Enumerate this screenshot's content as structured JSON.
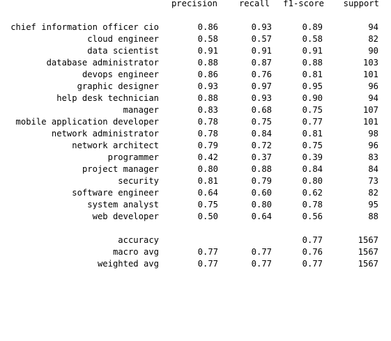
{
  "header": {
    "precision": "precision",
    "recall": "recall",
    "f1": "f1-score",
    "support": "support"
  },
  "rows": [
    {
      "label": "chief information officer cio",
      "precision": "0.86",
      "recall": "0.93",
      "f1": "0.89",
      "support": "94"
    },
    {
      "label": "cloud engineer",
      "precision": "0.58",
      "recall": "0.57",
      "f1": "0.58",
      "support": "82"
    },
    {
      "label": "data scientist",
      "precision": "0.91",
      "recall": "0.91",
      "f1": "0.91",
      "support": "90"
    },
    {
      "label": "database administrator",
      "precision": "0.88",
      "recall": "0.87",
      "f1": "0.88",
      "support": "103"
    },
    {
      "label": "devops engineer",
      "precision": "0.86",
      "recall": "0.76",
      "f1": "0.81",
      "support": "101"
    },
    {
      "label": "graphic designer",
      "precision": "0.93",
      "recall": "0.97",
      "f1": "0.95",
      "support": "96"
    },
    {
      "label": "help desk technician",
      "precision": "0.88",
      "recall": "0.93",
      "f1": "0.90",
      "support": "94"
    },
    {
      "label": "manager",
      "precision": "0.83",
      "recall": "0.68",
      "f1": "0.75",
      "support": "107"
    },
    {
      "label": "mobile application developer",
      "precision": "0.78",
      "recall": "0.75",
      "f1": "0.77",
      "support": "101"
    },
    {
      "label": "network administrator",
      "precision": "0.78",
      "recall": "0.84",
      "f1": "0.81",
      "support": "98"
    },
    {
      "label": "network architect",
      "precision": "0.79",
      "recall": "0.72",
      "f1": "0.75",
      "support": "96"
    },
    {
      "label": "programmer",
      "precision": "0.42",
      "recall": "0.37",
      "f1": "0.39",
      "support": "83"
    },
    {
      "label": "project manager",
      "precision": "0.80",
      "recall": "0.88",
      "f1": "0.84",
      "support": "84"
    },
    {
      "label": "security",
      "precision": "0.81",
      "recall": "0.79",
      "f1": "0.80",
      "support": "73"
    },
    {
      "label": "software engineer",
      "precision": "0.64",
      "recall": "0.60",
      "f1": "0.62",
      "support": "82"
    },
    {
      "label": "system analyst",
      "precision": "0.75",
      "recall": "0.80",
      "f1": "0.78",
      "support": "95"
    },
    {
      "label": "web developer",
      "precision": "0.50",
      "recall": "0.64",
      "f1": "0.56",
      "support": "88"
    }
  ],
  "summary": [
    {
      "label": "accuracy",
      "precision": "",
      "recall": "",
      "f1": "0.77",
      "support": "1567"
    },
    {
      "label": "macro avg",
      "precision": "0.77",
      "recall": "0.77",
      "f1": "0.76",
      "support": "1567"
    },
    {
      "label": "weighted avg",
      "precision": "0.77",
      "recall": "0.77",
      "f1": "0.77",
      "support": "1567"
    }
  ]
}
